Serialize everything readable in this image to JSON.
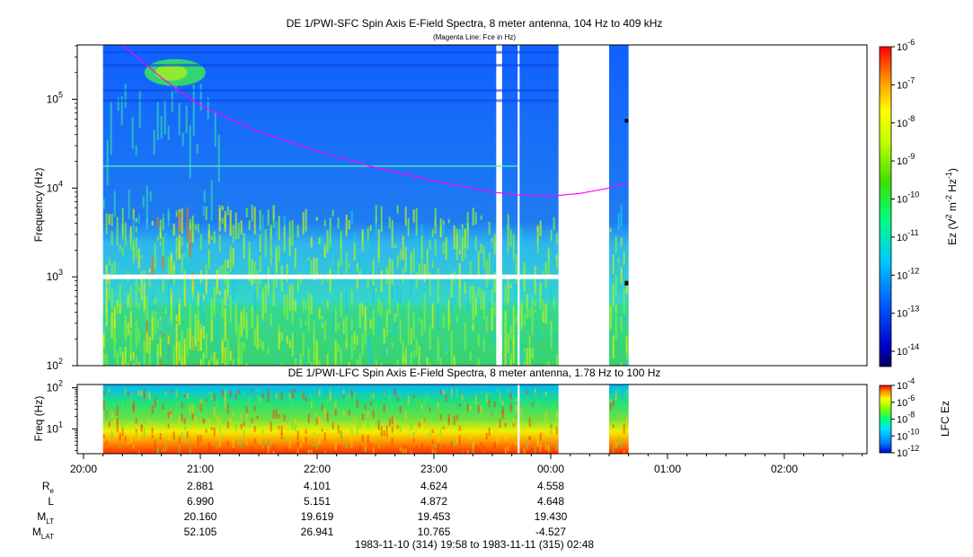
{
  "chart_data": [
    {
      "type": "heatmap",
      "title": "DE 1/PWI-SFC  Spin Axis E-Field Spectra, 8 meter antenna, 104 Hz to 409 kHz",
      "subtitle": "(Magenta Line: Fce in Hz)",
      "ylabel": "Frequency (Hz)",
      "y_scale": "log",
      "ylim": [
        100,
        409000
      ],
      "y_ticks": [
        {
          "value": 100,
          "base": "10",
          "exp": "2"
        },
        {
          "value": 1000,
          "base": "10",
          "exp": "3"
        },
        {
          "value": 10000,
          "base": "10",
          "exp": "4"
        },
        {
          "value": 100000,
          "base": "10",
          "exp": "5"
        }
      ],
      "colorbar": {
        "label_parts": [
          "Ez (V",
          "2",
          " m",
          "-2",
          " Hz",
          "-1",
          ")"
        ],
        "scale": "log",
        "range": [
          -14.4,
          -6
        ],
        "ticks": [
          {
            "value": -6,
            "base": "10",
            "exp": "-6"
          },
          {
            "value": -7,
            "base": "10",
            "exp": "-7"
          },
          {
            "value": -8,
            "base": "10",
            "exp": "-8"
          },
          {
            "value": -9,
            "base": "10",
            "exp": "-9"
          },
          {
            "value": -10,
            "base": "10",
            "exp": "-10"
          },
          {
            "value": -11,
            "base": "10",
            "exp": "-11"
          },
          {
            "value": -12,
            "base": "10",
            "exp": "-12"
          },
          {
            "value": -13,
            "base": "10",
            "exp": "-13"
          },
          {
            "value": -14,
            "base": "10",
            "exp": "-14"
          }
        ]
      },
      "series": [
        {
          "name": "Fce",
          "color": "#ff00ff",
          "x": [
            "20:20",
            "20:30",
            "20:40",
            "20:50",
            "21:00",
            "21:30",
            "22:00",
            "22:30",
            "23:00",
            "23:30",
            "23:45",
            "00:00",
            "00:15",
            "00:30",
            "00:40"
          ],
          "y": [
            409000,
            270000,
            175000,
            120000,
            85000,
            43000,
            26000,
            17000,
            12000,
            9000,
            8300,
            8100,
            8700,
            10000,
            11700
          ]
        }
      ],
      "data_coverage": [
        "20:10-23:32",
        "23:35-23:43",
        "23:44-00:04",
        "00:30-00:40"
      ],
      "gaps": [
        "00:04-00:30",
        "after 00:40"
      ],
      "white_band_hz": 1000,
      "grid": false,
      "legend": "none"
    },
    {
      "type": "heatmap",
      "title": "DE 1/PWI-LFC  Spin Axis E-Field Spectra, 8 meter antenna, 1.78 Hz to 100 Hz",
      "ylabel": "Freq (Hz)",
      "y_scale": "log",
      "ylim": [
        2.5,
        120
      ],
      "y_ticks": [
        {
          "value": 10,
          "base": "10",
          "exp": "1"
        },
        {
          "value": 100,
          "base": "10",
          "exp": "2"
        }
      ],
      "colorbar": {
        "label": "LFC Ez",
        "scale": "log",
        "range": [
          -12,
          -4
        ],
        "ticks": [
          {
            "value": -4,
            "base": "10",
            "exp": "-4"
          },
          {
            "value": -6,
            "base": "10",
            "exp": "-6"
          },
          {
            "value": -8,
            "base": "10",
            "exp": "-8"
          },
          {
            "value": -10,
            "base": "10",
            "exp": "-10"
          },
          {
            "value": -12,
            "base": "10",
            "exp": "-12"
          }
        ]
      },
      "data_coverage": [
        "20:10-23:43",
        "23:44-00:04",
        "00:30-00:40"
      ],
      "grid": false,
      "legend": "none"
    }
  ],
  "x_axis": {
    "ticks": [
      "20:00",
      "21:00",
      "22:00",
      "23:00",
      "00:00",
      "01:00",
      "02:00"
    ],
    "range": [
      "19:58",
      "02:48"
    ]
  },
  "ephemeris": {
    "rows": [
      {
        "label": "R",
        "sub": "e",
        "values": [
          "2.881",
          "4.101",
          "4.624",
          "4.558"
        ]
      },
      {
        "label": "L",
        "sub": "",
        "values": [
          "6.990",
          "5.151",
          "4.872",
          "4.648"
        ]
      },
      {
        "label": "M",
        "sub": "LT",
        "values": [
          "20.160",
          "19.619",
          "19.453",
          "19.430"
        ]
      },
      {
        "label": "M",
        "sub": "LAT",
        "values": [
          "52.105",
          "26.941",
          "10.765",
          "-4.527"
        ]
      }
    ],
    "times": [
      "21:00",
      "22:00",
      "23:00",
      "00:00"
    ]
  },
  "time_range": "1983-11-10 (314) 19:58 to 1983-11-11 (315) 02:48"
}
